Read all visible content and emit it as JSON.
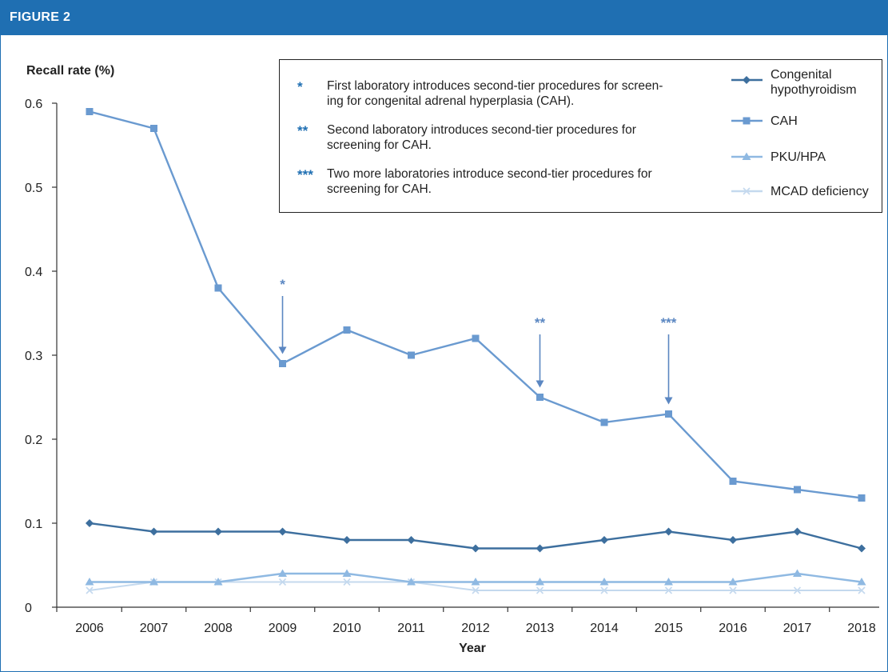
{
  "figure_label": "FIGURE 2",
  "colors": {
    "header": "#1f6fb2",
    "congenital_hypothyroidism": "#3d6f9e",
    "cah": "#6a9ad0",
    "pku_hpa": "#8fb9e2",
    "mcad": "#c4d9ee",
    "annotation": "#5b87c2"
  },
  "notes": [
    {
      "marker": "*",
      "text": "First laboratory introduces second-tier procedures for screen-\ning for congenital adrenal hyperplasia (CAH)."
    },
    {
      "marker": "**",
      "text": "Second laboratory introduces second-tier procedures for\nscreening for CAH."
    },
    {
      "marker": "***",
      "text": "Two more laboratories introduce second-tier procedures for\nscreening for CAH."
    }
  ],
  "chart_data": {
    "type": "line",
    "title": "",
    "xlabel": "Year",
    "ylabel": "Recall rate (%)",
    "x": [
      "2006",
      "2007",
      "2008",
      "2009",
      "2010",
      "2011",
      "2012",
      "2013",
      "2014",
      "2015",
      "2016",
      "2017",
      "2018"
    ],
    "ylim": [
      0,
      0.6
    ],
    "yticks": [
      "0",
      "0.1",
      "0.2",
      "0.3",
      "0.4",
      "0.5",
      "0.6"
    ],
    "grid": false,
    "legend_position": "top-right",
    "series": [
      {
        "name": "Congenital hypothyroidism",
        "marker": "diamond",
        "values": [
          0.1,
          0.09,
          0.09,
          0.09,
          0.08,
          0.08,
          0.07,
          0.07,
          0.08,
          0.09,
          0.08,
          0.09,
          0.07
        ]
      },
      {
        "name": "CAH",
        "marker": "square",
        "values": [
          0.59,
          0.57,
          0.38,
          0.29,
          0.33,
          0.3,
          0.32,
          0.25,
          0.22,
          0.23,
          0.15,
          0.14,
          0.13
        ]
      },
      {
        "name": "PKU/HPA",
        "marker": "triangle",
        "values": [
          0.03,
          0.03,
          0.03,
          0.04,
          0.04,
          0.03,
          0.03,
          0.03,
          0.03,
          0.03,
          0.03,
          0.04,
          0.03
        ]
      },
      {
        "name": "MCAD deficiency",
        "marker": "cross",
        "values": [
          0.02,
          0.03,
          0.03,
          0.03,
          0.03,
          0.03,
          0.02,
          0.02,
          0.02,
          0.02,
          0.02,
          0.02,
          0.02
        ]
      }
    ],
    "annotations": [
      {
        "label": "*",
        "x": "2009"
      },
      {
        "label": "**",
        "x": "2013"
      },
      {
        "label": "***",
        "x": "2015"
      }
    ]
  }
}
